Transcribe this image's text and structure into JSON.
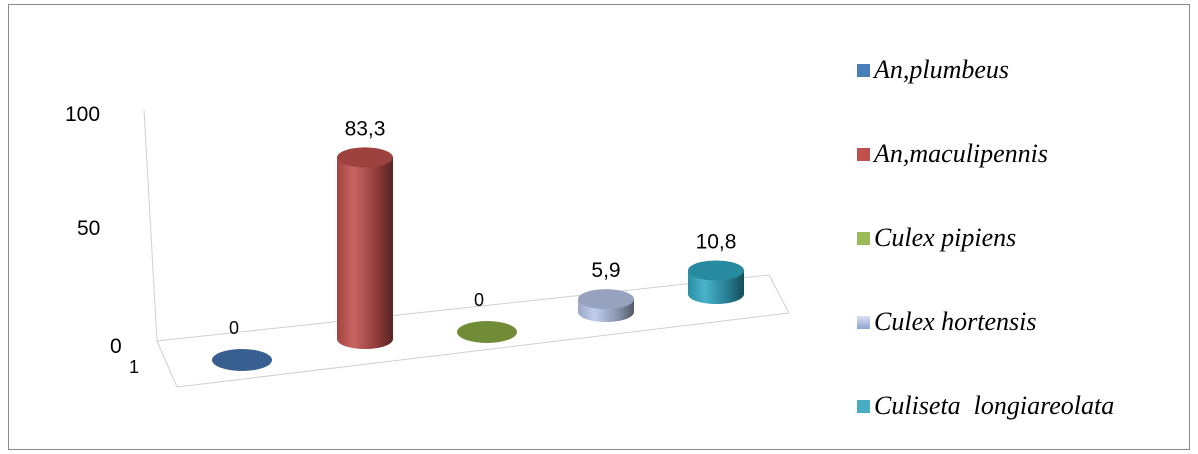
{
  "chart_data": {
    "type": "bar",
    "style": "3d-cylinder",
    "categories": [
      "1"
    ],
    "series": [
      {
        "name": "An,plumbeus",
        "values": [
          0
        ],
        "label": "0",
        "color": "#3e6aa0"
      },
      {
        "name": "An,maculipennis",
        "values": [
          83.3
        ],
        "label": "83,3",
        "color": "#c0504d"
      },
      {
        "name": "Culex pipiens",
        "values": [
          0
        ],
        "label": "0",
        "color": "#7d9a3c"
      },
      {
        "name": "Culex hortensis",
        "values": [
          5.9
        ],
        "label": "5,9",
        "color": "#b7c6e8"
      },
      {
        "name": "Culiseta  longiareolata",
        "values": [
          10.8
        ],
        "label": "10,8",
        "color": "#31a8c2"
      }
    ],
    "yticks": [
      "0",
      "50",
      "100"
    ],
    "ylim": [
      0,
      100
    ],
    "legend": "right",
    "grid": false
  }
}
